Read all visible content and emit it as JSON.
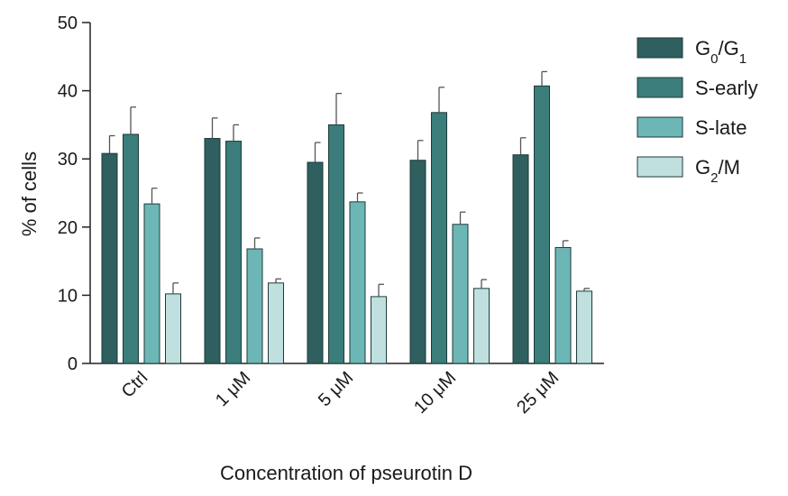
{
  "chart_data": {
    "type": "bar",
    "xlabel": "Concentration of pseurotin D",
    "ylabel": "% of cells",
    "ylim": [
      0,
      50
    ],
    "yticks": [
      0,
      10,
      20,
      30,
      40,
      50
    ],
    "categories": [
      "Ctrl",
      "1 μM",
      "5 μM",
      "10 μM",
      "25 μM"
    ],
    "series": [
      {
        "name": "G0/G1",
        "name_main": "G",
        "name_sub1": "0",
        "name_mid": "/G",
        "name_sub2": "1",
        "color": "#2f5f5e",
        "values": [
          30.8,
          33.0,
          29.5,
          29.8,
          30.6
        ],
        "errors": [
          2.6,
          3.0,
          2.9,
          2.9,
          2.5
        ]
      },
      {
        "name": "S-early",
        "name_main": "S-early",
        "color": "#3a7d7b",
        "values": [
          33.6,
          32.6,
          35.0,
          36.8,
          40.7
        ],
        "errors": [
          4.0,
          2.4,
          4.6,
          3.7,
          2.1
        ]
      },
      {
        "name": "S-late",
        "name_main": "S-late",
        "color": "#6cb7b5",
        "values": [
          23.4,
          16.8,
          23.7,
          20.4,
          17.0
        ],
        "errors": [
          2.3,
          1.6,
          1.3,
          1.8,
          1.0
        ]
      },
      {
        "name": "G2/M",
        "name_main": "G",
        "name_sub1": "2",
        "name_mid": "/M",
        "color": "#bfe0df",
        "values": [
          10.2,
          11.8,
          9.8,
          11.0,
          10.6
        ],
        "errors": [
          1.6,
          0.6,
          1.8,
          1.3,
          0.4
        ]
      }
    ],
    "legend_position": "top-right",
    "grid": false,
    "error_bars": true
  }
}
